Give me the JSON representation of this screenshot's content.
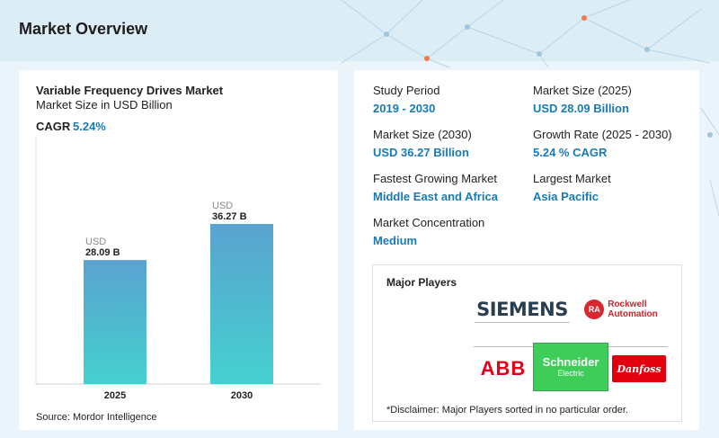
{
  "page": {
    "title": "Market Overview"
  },
  "chart": {
    "title": "Variable Frequency Drives Market",
    "subtitle": "Market Size in USD Billion",
    "cagr_label": "CAGR",
    "cagr_value": "5.24%",
    "source": "Source: Mordor Intelligence",
    "bar_gradient_top": "#5aa3cf",
    "bar_gradient_bottom": "#45d0cf"
  },
  "chart_data": {
    "type": "bar",
    "title": "Variable Frequency Drives Market",
    "subtitle": "Market Size in USD Billion",
    "categories": [
      "2025",
      "2030"
    ],
    "values": [
      28.09,
      36.27
    ],
    "value_labels": [
      {
        "unit": "USD",
        "text": "28.09 B"
      },
      {
        "unit": "USD",
        "text": "36.27 B"
      }
    ],
    "ylim": [
      0,
      40
    ],
    "grid": false,
    "legend": "none"
  },
  "stats": {
    "study_period": {
      "label": "Study Period",
      "value": "2019 - 2030"
    },
    "market_size_2025": {
      "label": "Market Size (2025)",
      "value": "USD 28.09 Billion"
    },
    "market_size_2030": {
      "label": "Market Size (2030)",
      "value": "USD 36.27 Billion"
    },
    "growth_rate": {
      "label": "Growth Rate (2025 - 2030)",
      "value": "5.24 % CAGR"
    },
    "fastest_growing": {
      "label": "Fastest Growing Market",
      "value": "Middle East and Africa"
    },
    "largest_market": {
      "label": "Largest Market",
      "value": "Asia Pacific"
    },
    "concentration": {
      "label": "Market Concentration",
      "value": "Medium"
    }
  },
  "players": {
    "title": "Major Players",
    "logos": {
      "siemens": "SIEMENS",
      "rockwell_badge": "RA",
      "rockwell_line1": "Rockwell",
      "rockwell_line2": "Automation",
      "abb": "ABB",
      "schneider_line1": "Schneider",
      "schneider_line2": "Electric",
      "danfoss": "Danfoss"
    },
    "disclaimer": "*Disclaimer: Major Players sorted in no particular order."
  },
  "colors": {
    "accent": "#1a7ab5",
    "background": "#eaf4fa",
    "header": "#dcedf6",
    "network_node": "#f07a4a"
  }
}
